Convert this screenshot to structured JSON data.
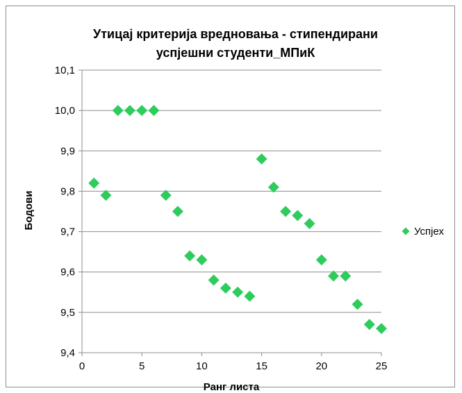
{
  "chart_data": {
    "type": "scatter",
    "title_line1": "Утицај критерија вредновања - стипендирани",
    "title_line2": "успјешни студенти_МПиК",
    "xlabel": "Ранг листа",
    "ylabel": "Бодови",
    "xlim": [
      0,
      25
    ],
    "ylim": [
      9.4,
      10.1
    ],
    "x_ticks": [
      0,
      5,
      10,
      15,
      20,
      25
    ],
    "x_tick_labels": [
      "0",
      "5",
      "10",
      "15",
      "20",
      "25"
    ],
    "y_ticks": [
      9.4,
      9.5,
      9.6,
      9.7,
      9.8,
      9.9,
      10.0,
      10.1
    ],
    "y_tick_labels": [
      "9,4",
      "9,5",
      "9,6",
      "9,7",
      "9,8",
      "9,9",
      "10,0",
      "10,1"
    ],
    "grid": "horizontal",
    "legend_position": "right",
    "marker": "diamond",
    "series": [
      {
        "name": "Успјех",
        "color": "#2ecc5c",
        "points": [
          {
            "x": 1,
            "y": 9.82
          },
          {
            "x": 2,
            "y": 9.79
          },
          {
            "x": 3,
            "y": 10.0
          },
          {
            "x": 4,
            "y": 10.0
          },
          {
            "x": 5,
            "y": 10.0
          },
          {
            "x": 6,
            "y": 10.0
          },
          {
            "x": 7,
            "y": 9.79
          },
          {
            "x": 8,
            "y": 9.75
          },
          {
            "x": 9,
            "y": 9.64
          },
          {
            "x": 10,
            "y": 9.63
          },
          {
            "x": 11,
            "y": 9.58
          },
          {
            "x": 12,
            "y": 9.56
          },
          {
            "x": 13,
            "y": 9.55
          },
          {
            "x": 14,
            "y": 9.54
          },
          {
            "x": 15,
            "y": 9.88
          },
          {
            "x": 16,
            "y": 9.81
          },
          {
            "x": 17,
            "y": 9.75
          },
          {
            "x": 18,
            "y": 9.74
          },
          {
            "x": 19,
            "y": 9.72
          },
          {
            "x": 20,
            "y": 9.63
          },
          {
            "x": 21,
            "y": 9.59
          },
          {
            "x": 22,
            "y": 9.59
          },
          {
            "x": 23,
            "y": 9.52
          },
          {
            "x": 24,
            "y": 9.47
          },
          {
            "x": 25,
            "y": 9.46
          }
        ]
      }
    ]
  }
}
